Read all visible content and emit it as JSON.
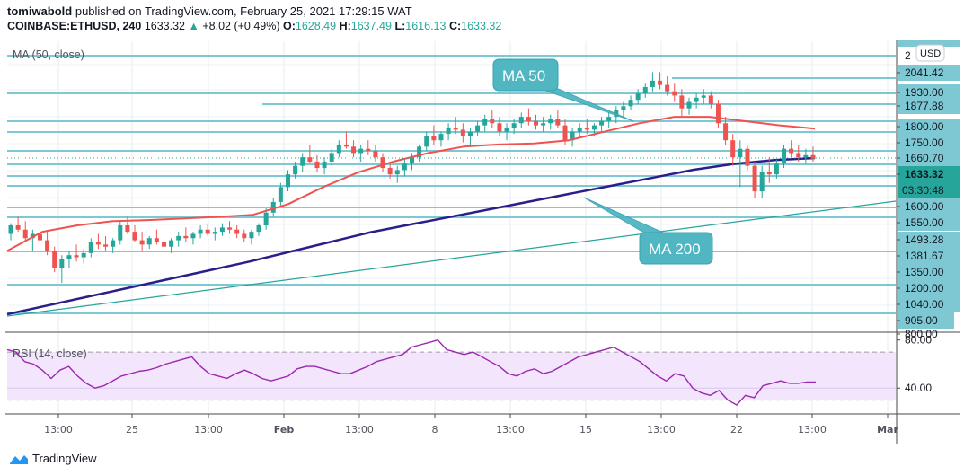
{
  "header": {
    "author": "tomiwabold",
    "published_text": "published on TradingView.com, February 25, 2021 17:29:15 WAT",
    "symbol": "COINBASE:ETHUSD, 240",
    "last_price": "1633.32",
    "change": "+8.02 (+0.49%)",
    "open_label": "O:",
    "open": "1628.49",
    "high_label": "H:",
    "high": "1637.49",
    "low_label": "L:",
    "low": "1616.13",
    "close_label": "C:",
    "close": "1633.32"
  },
  "currency_button": "USD",
  "countdown": "03:30:48",
  "footer": {
    "brand": "TradingView"
  },
  "colors": {
    "up": "#26a69a",
    "down": "#ef5350",
    "ma50": "#ef5350",
    "ma200": "#2a1e8a",
    "level": "#7ec8d3",
    "trendline": "#26a69a",
    "rsi": "#9c27b0",
    "rsi_band": "#f3e5fc",
    "callout": "#4fb6c2"
  },
  "chart_data": [
    {
      "type": "candlestick",
      "title": "COINBASE:ETHUSD, 240",
      "indicator_legend": "MA (50, close)",
      "ylabel": "USD",
      "ylim": [
        780,
        2120
      ],
      "x_ticks": [
        "13:00",
        "25",
        "13:00",
        "Feb",
        "13:00",
        "8",
        "13:00",
        "15",
        "13:00",
        "22",
        "13:00",
        "Mar"
      ],
      "price_axis_labels": [
        "2041.42",
        "1930.00",
        "1877.88",
        "1800.00",
        "1750.00",
        "1660.70",
        "1633.32",
        "1600.00",
        "1550.00",
        "1493.28",
        "1381.67",
        "1350.00",
        "1200.00",
        "1040.00",
        "905.00",
        "800.00"
      ],
      "current_price": 1633.32,
      "horizontal_levels": [
        2100,
        2041.42,
        1930,
        1877.88,
        1800,
        1750,
        1660.7,
        1600,
        1550,
        1493.28,
        1381.67,
        1200,
        1040,
        905
      ],
      "annotations": [
        {
          "text": "MA 50",
          "points_to": "MA 50 line"
        },
        {
          "text": "MA 200",
          "points_to": "MA 200 line"
        }
      ],
      "series": [
        {
          "name": "MA 50",
          "approx_values": [
            1200,
            1290,
            1320,
            1340,
            1345,
            1352,
            1360,
            1370,
            1420,
            1500,
            1570,
            1620,
            1660,
            1690,
            1700,
            1705,
            1720,
            1760,
            1800,
            1830,
            1830,
            1810,
            1790,
            1775
          ]
        },
        {
          "name": "MA 200",
          "approx_values": [
            860,
            905,
            950,
            995,
            1040,
            1085,
            1130,
            1180,
            1230,
            1280,
            1320,
            1360,
            1400,
            1440,
            1480,
            1520,
            1560,
            1600,
            1630,
            1650,
            1660
          ]
        },
        {
          "name": "Trendline",
          "approx_values": [
            860,
            1540
          ]
        }
      ],
      "candles_ohlc": [
        [
          1280,
          1330,
          1250,
          1320
        ],
        [
          1320,
          1360,
          1290,
          1300
        ],
        [
          1300,
          1340,
          1240,
          1260
        ],
        [
          1260,
          1300,
          1200,
          1280
        ],
        [
          1280,
          1320,
          1240,
          1250
        ],
        [
          1250,
          1290,
          1180,
          1200
        ],
        [
          1200,
          1220,
          1100,
          1120
        ],
        [
          1120,
          1180,
          1050,
          1160
        ],
        [
          1160,
          1200,
          1120,
          1180
        ],
        [
          1180,
          1230,
          1150,
          1170
        ],
        [
          1170,
          1210,
          1140,
          1190
        ],
        [
          1190,
          1260,
          1170,
          1240
        ],
        [
          1240,
          1280,
          1210,
          1230
        ],
        [
          1230,
          1270,
          1200,
          1220
        ],
        [
          1220,
          1260,
          1190,
          1250
        ],
        [
          1250,
          1340,
          1230,
          1320
        ],
        [
          1320,
          1360,
          1280,
          1290
        ],
        [
          1290,
          1320,
          1240,
          1250
        ],
        [
          1250,
          1290,
          1200,
          1230
        ],
        [
          1230,
          1270,
          1210,
          1260
        ],
        [
          1260,
          1300,
          1230,
          1240
        ],
        [
          1240,
          1270,
          1200,
          1220
        ],
        [
          1220,
          1260,
          1190,
          1250
        ],
        [
          1250,
          1290,
          1220,
          1270
        ],
        [
          1270,
          1310,
          1240,
          1260
        ],
        [
          1260,
          1290,
          1230,
          1280
        ],
        [
          1280,
          1320,
          1260,
          1300
        ],
        [
          1300,
          1330,
          1270,
          1280
        ],
        [
          1280,
          1310,
          1250,
          1290
        ],
        [
          1290,
          1330,
          1270,
          1310
        ],
        [
          1310,
          1340,
          1280,
          1300
        ],
        [
          1300,
          1320,
          1260,
          1280
        ],
        [
          1280,
          1300,
          1240,
          1260
        ],
        [
          1260,
          1300,
          1230,
          1290
        ],
        [
          1290,
          1330,
          1270,
          1320
        ],
        [
          1320,
          1400,
          1300,
          1380
        ],
        [
          1380,
          1450,
          1360,
          1430
        ],
        [
          1430,
          1520,
          1410,
          1500
        ],
        [
          1500,
          1580,
          1480,
          1560
        ],
        [
          1560,
          1620,
          1540,
          1600
        ],
        [
          1600,
          1660,
          1570,
          1640
        ],
        [
          1640,
          1700,
          1610,
          1620
        ],
        [
          1620,
          1650,
          1570,
          1590
        ],
        [
          1590,
          1640,
          1560,
          1620
        ],
        [
          1620,
          1680,
          1600,
          1660
        ],
        [
          1660,
          1720,
          1640,
          1700
        ],
        [
          1700,
          1760,
          1680,
          1690
        ],
        [
          1690,
          1720,
          1640,
          1660
        ],
        [
          1660,
          1700,
          1620,
          1680
        ],
        [
          1680,
          1720,
          1650,
          1670
        ],
        [
          1670,
          1700,
          1620,
          1640
        ],
        [
          1640,
          1660,
          1570,
          1590
        ],
        [
          1590,
          1620,
          1540,
          1560
        ],
        [
          1560,
          1600,
          1520,
          1580
        ],
        [
          1580,
          1630,
          1550,
          1610
        ],
        [
          1610,
          1660,
          1580,
          1640
        ],
        [
          1640,
          1700,
          1620,
          1690
        ],
        [
          1690,
          1760,
          1670,
          1740
        ],
        [
          1740,
          1790,
          1700,
          1720
        ],
        [
          1720,
          1760,
          1690,
          1750
        ],
        [
          1750,
          1800,
          1720,
          1780
        ],
        [
          1780,
          1830,
          1750,
          1770
        ],
        [
          1770,
          1800,
          1710,
          1740
        ],
        [
          1740,
          1780,
          1700,
          1760
        ],
        [
          1760,
          1810,
          1740,
          1790
        ],
        [
          1790,
          1840,
          1760,
          1820
        ],
        [
          1820,
          1860,
          1780,
          1800
        ],
        [
          1800,
          1830,
          1740,
          1760
        ],
        [
          1760,
          1800,
          1720,
          1780
        ],
        [
          1780,
          1820,
          1750,
          1800
        ],
        [
          1800,
          1850,
          1780,
          1830
        ],
        [
          1830,
          1870,
          1790,
          1810
        ],
        [
          1810,
          1840,
          1770,
          1790
        ],
        [
          1790,
          1830,
          1760,
          1800
        ],
        [
          1800,
          1840,
          1770,
          1820
        ],
        [
          1820,
          1860,
          1780,
          1790
        ],
        [
          1790,
          1820,
          1700,
          1720
        ],
        [
          1720,
          1780,
          1690,
          1760
        ],
        [
          1760,
          1800,
          1730,
          1780
        ],
        [
          1780,
          1820,
          1750,
          1770
        ],
        [
          1770,
          1800,
          1740,
          1790
        ],
        [
          1790,
          1830,
          1760,
          1810
        ],
        [
          1810,
          1850,
          1780,
          1830
        ],
        [
          1830,
          1880,
          1800,
          1860
        ],
        [
          1860,
          1900,
          1830,
          1880
        ],
        [
          1880,
          1930,
          1860,
          1910
        ],
        [
          1910,
          1960,
          1890,
          1940
        ],
        [
          1940,
          1990,
          1920,
          1970
        ],
        [
          1970,
          2040,
          1950,
          2000
        ],
        [
          2000,
          2040,
          1960,
          1980
        ],
        [
          1980,
          2020,
          1930,
          1950
        ],
        [
          1950,
          1990,
          1900,
          1930
        ],
        [
          1930,
          1960,
          1830,
          1870
        ],
        [
          1870,
          1920,
          1840,
          1900
        ],
        [
          1900,
          1940,
          1870,
          1920
        ],
        [
          1920,
          1960,
          1890,
          1930
        ],
        [
          1930,
          1950,
          1870,
          1890
        ],
        [
          1890,
          1910,
          1780,
          1800
        ],
        [
          1800,
          1830,
          1700,
          1720
        ],
        [
          1720,
          1750,
          1600,
          1640
        ],
        [
          1640,
          1720,
          1500,
          1680
        ],
        [
          1680,
          1700,
          1580,
          1600
        ],
        [
          1600,
          1620,
          1450,
          1480
        ],
        [
          1480,
          1600,
          1450,
          1570
        ],
        [
          1570,
          1640,
          1520,
          1560
        ],
        [
          1560,
          1630,
          1540,
          1610
        ],
        [
          1610,
          1700,
          1590,
          1680
        ],
        [
          1680,
          1720,
          1640,
          1660
        ],
        [
          1660,
          1700,
          1620,
          1640
        ],
        [
          1640,
          1680,
          1610,
          1650
        ],
        [
          1650,
          1690,
          1620,
          1633.32
        ]
      ]
    },
    {
      "type": "line",
      "title": "RSI (14, close)",
      "ylim": [
        20,
        85
      ],
      "y_ticks": [
        "80.00",
        "40.00"
      ],
      "band": [
        30,
        70
      ],
      "values": [
        72,
        70,
        62,
        60,
        55,
        48,
        55,
        58,
        50,
        44,
        40,
        42,
        46,
        50,
        52,
        54,
        55,
        57,
        60,
        62,
        64,
        66,
        58,
        52,
        50,
        48,
        52,
        55,
        52,
        48,
        46,
        48,
        50,
        56,
        58,
        58,
        56,
        54,
        52,
        52,
        55,
        58,
        62,
        64,
        66,
        68,
        74,
        76,
        78,
        80,
        72,
        70,
        68,
        70,
        66,
        62,
        58,
        52,
        50,
        54,
        56,
        52,
        54,
        58,
        62,
        66,
        68,
        70,
        72,
        74,
        70,
        66,
        62,
        56,
        50,
        46,
        52,
        50,
        40,
        36,
        34,
        38,
        30,
        26,
        34,
        32,
        42,
        44,
        46,
        44,
        44,
        45,
        45
      ]
    }
  ]
}
